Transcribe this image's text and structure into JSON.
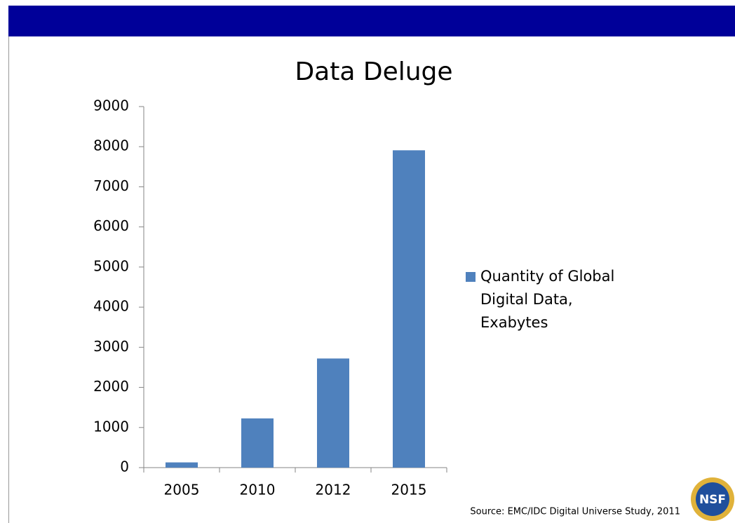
{
  "chart_data": {
    "type": "bar",
    "title": "Data Deluge",
    "categories": [
      "2005",
      "2010",
      "2012",
      "2015"
    ],
    "series": [
      {
        "name": "Quantity of Global Digital Data, Exabytes",
        "color": "#4f81bd",
        "values": [
          130,
          1227,
          2720,
          7910
        ]
      }
    ],
    "ylim": [
      0,
      9000
    ],
    "yticks": [
      0,
      1000,
      2000,
      3000,
      4000,
      5000,
      6000,
      7000,
      8000,
      9000
    ],
    "grid": false,
    "legend": "right",
    "source": "Source: EMC/IDC Digital Universe Study, 2011"
  },
  "logo": "NSF"
}
